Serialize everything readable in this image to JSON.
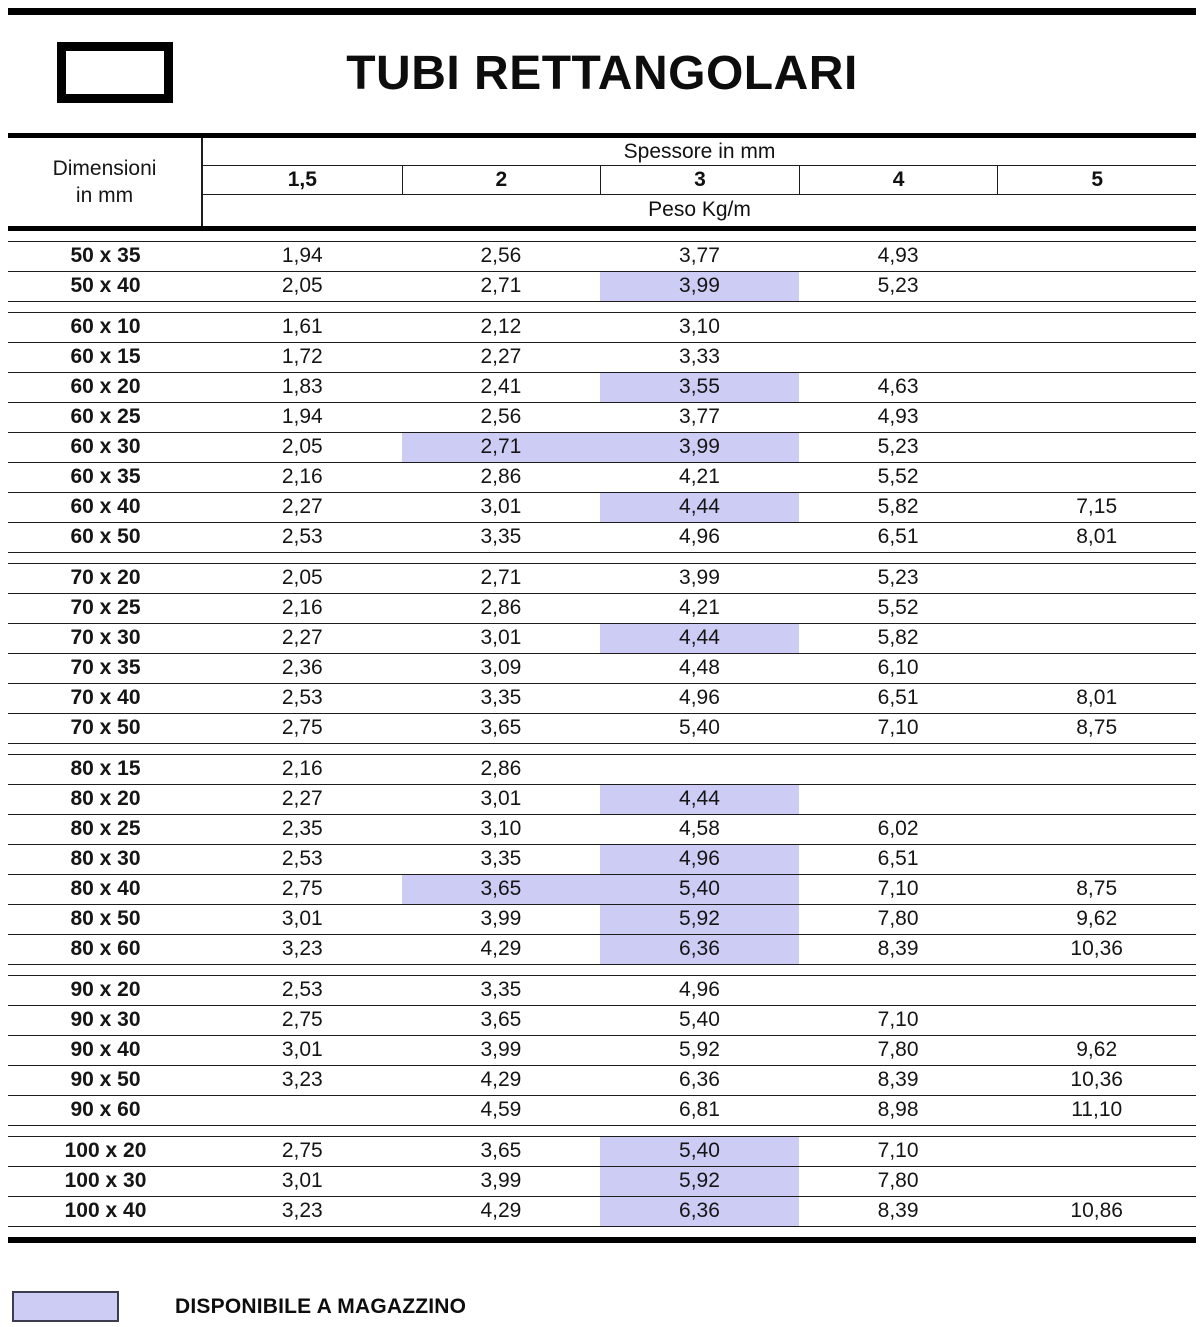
{
  "page": {
    "title": "TUBI RETTANGOLARI"
  },
  "table": {
    "dimension_header_line1": "Dimensioni",
    "dimension_header_line2": "in mm",
    "thickness_header": "Spessore in mm",
    "weight_header": "Peso Kg/m",
    "thickness_columns": [
      "1,5",
      "2",
      "3",
      "4",
      "5"
    ],
    "groups": [
      {
        "name": "50",
        "rows": [
          {
            "dim": "50 x 35",
            "values": [
              "1,94",
              "2,56",
              "3,77",
              "4,93",
              ""
            ],
            "highlight": []
          },
          {
            "dim": "50 x 40",
            "values": [
              "2,05",
              "2,71",
              "3,99",
              "5,23",
              ""
            ],
            "highlight": [
              2
            ]
          }
        ]
      },
      {
        "name": "60",
        "rows": [
          {
            "dim": "60 x 10",
            "values": [
              "1,61",
              "2,12",
              "3,10",
              "",
              ""
            ],
            "highlight": []
          },
          {
            "dim": "60 x 15",
            "values": [
              "1,72",
              "2,27",
              "3,33",
              "",
              ""
            ],
            "highlight": []
          },
          {
            "dim": "60 x 20",
            "values": [
              "1,83",
              "2,41",
              "3,55",
              "4,63",
              ""
            ],
            "highlight": [
              2
            ]
          },
          {
            "dim": "60 x 25",
            "values": [
              "1,94",
              "2,56",
              "3,77",
              "4,93",
              ""
            ],
            "highlight": []
          },
          {
            "dim": "60 x 30",
            "values": [
              "2,05",
              "2,71",
              "3,99",
              "5,23",
              ""
            ],
            "highlight": [
              1,
              2
            ]
          },
          {
            "dim": "60 x 35",
            "values": [
              "2,16",
              "2,86",
              "4,21",
              "5,52",
              ""
            ],
            "highlight": []
          },
          {
            "dim": "60 x 40",
            "values": [
              "2,27",
              "3,01",
              "4,44",
              "5,82",
              "7,15"
            ],
            "highlight": [
              2
            ]
          },
          {
            "dim": "60 x 50",
            "values": [
              "2,53",
              "3,35",
              "4,96",
              "6,51",
              "8,01"
            ],
            "highlight": []
          }
        ]
      },
      {
        "name": "70",
        "rows": [
          {
            "dim": "70 x 20",
            "values": [
              "2,05",
              "2,71",
              "3,99",
              "5,23",
              ""
            ],
            "highlight": []
          },
          {
            "dim": "70 x 25",
            "values": [
              "2,16",
              "2,86",
              "4,21",
              "5,52",
              ""
            ],
            "highlight": []
          },
          {
            "dim": "70 x 30",
            "values": [
              "2,27",
              "3,01",
              "4,44",
              "5,82",
              ""
            ],
            "highlight": [
              2
            ]
          },
          {
            "dim": "70 x 35",
            "values": [
              "2,36",
              "3,09",
              "4,48",
              "6,10",
              ""
            ],
            "highlight": []
          },
          {
            "dim": "70 x 40",
            "values": [
              "2,53",
              "3,35",
              "4,96",
              "6,51",
              "8,01"
            ],
            "highlight": []
          },
          {
            "dim": "70 x 50",
            "values": [
              "2,75",
              "3,65",
              "5,40",
              "7,10",
              "8,75"
            ],
            "highlight": []
          }
        ]
      },
      {
        "name": "80",
        "rows": [
          {
            "dim": "80 x 15",
            "values": [
              "2,16",
              "2,86",
              "",
              "",
              ""
            ],
            "highlight": []
          },
          {
            "dim": "80 x 20",
            "values": [
              "2,27",
              "3,01",
              "4,44",
              "",
              ""
            ],
            "highlight": [
              2
            ]
          },
          {
            "dim": "80 x 25",
            "values": [
              "2,35",
              "3,10",
              "4,58",
              "6,02",
              ""
            ],
            "highlight": []
          },
          {
            "dim": "80 x 30",
            "values": [
              "2,53",
              "3,35",
              "4,96",
              "6,51",
              ""
            ],
            "highlight": [
              2
            ]
          },
          {
            "dim": "80 x 40",
            "values": [
              "2,75",
              "3,65",
              "5,40",
              "7,10",
              "8,75"
            ],
            "highlight": [
              1,
              2
            ]
          },
          {
            "dim": "80 x 50",
            "values": [
              "3,01",
              "3,99",
              "5,92",
              "7,80",
              "9,62"
            ],
            "highlight": [
              2
            ]
          },
          {
            "dim": "80 x 60",
            "values": [
              "3,23",
              "4,29",
              "6,36",
              "8,39",
              "10,36"
            ],
            "highlight": [
              2
            ]
          }
        ]
      },
      {
        "name": "90",
        "rows": [
          {
            "dim": "90 x 20",
            "values": [
              "2,53",
              "3,35",
              "4,96",
              "",
              ""
            ],
            "highlight": []
          },
          {
            "dim": "90 x 30",
            "values": [
              "2,75",
              "3,65",
              "5,40",
              "7,10",
              ""
            ],
            "highlight": []
          },
          {
            "dim": "90 x 40",
            "values": [
              "3,01",
              "3,99",
              "5,92",
              "7,80",
              "9,62"
            ],
            "highlight": []
          },
          {
            "dim": "90 x 50",
            "values": [
              "3,23",
              "4,29",
              "6,36",
              "8,39",
              "10,36"
            ],
            "highlight": []
          },
          {
            "dim": "90 x 60",
            "values": [
              "",
              "4,59",
              "6,81",
              "8,98",
              "11,10"
            ],
            "highlight": []
          }
        ]
      },
      {
        "name": "100",
        "rows": [
          {
            "dim": "100 x 20",
            "values": [
              "2,75",
              "3,65",
              "5,40",
              "7,10",
              ""
            ],
            "highlight": [
              2
            ]
          },
          {
            "dim": "100 x 30",
            "values": [
              "3,01",
              "3,99",
              "5,92",
              "7,80",
              ""
            ],
            "highlight": [
              2
            ]
          },
          {
            "dim": "100 x 40",
            "values": [
              "3,23",
              "4,29",
              "6,36",
              "8,39",
              "10,86"
            ],
            "highlight": [
              2
            ]
          }
        ]
      }
    ]
  },
  "legend": {
    "label": "DISPONIBILE A MAGAZZINO",
    "highlight_color": "#ccccf5"
  }
}
